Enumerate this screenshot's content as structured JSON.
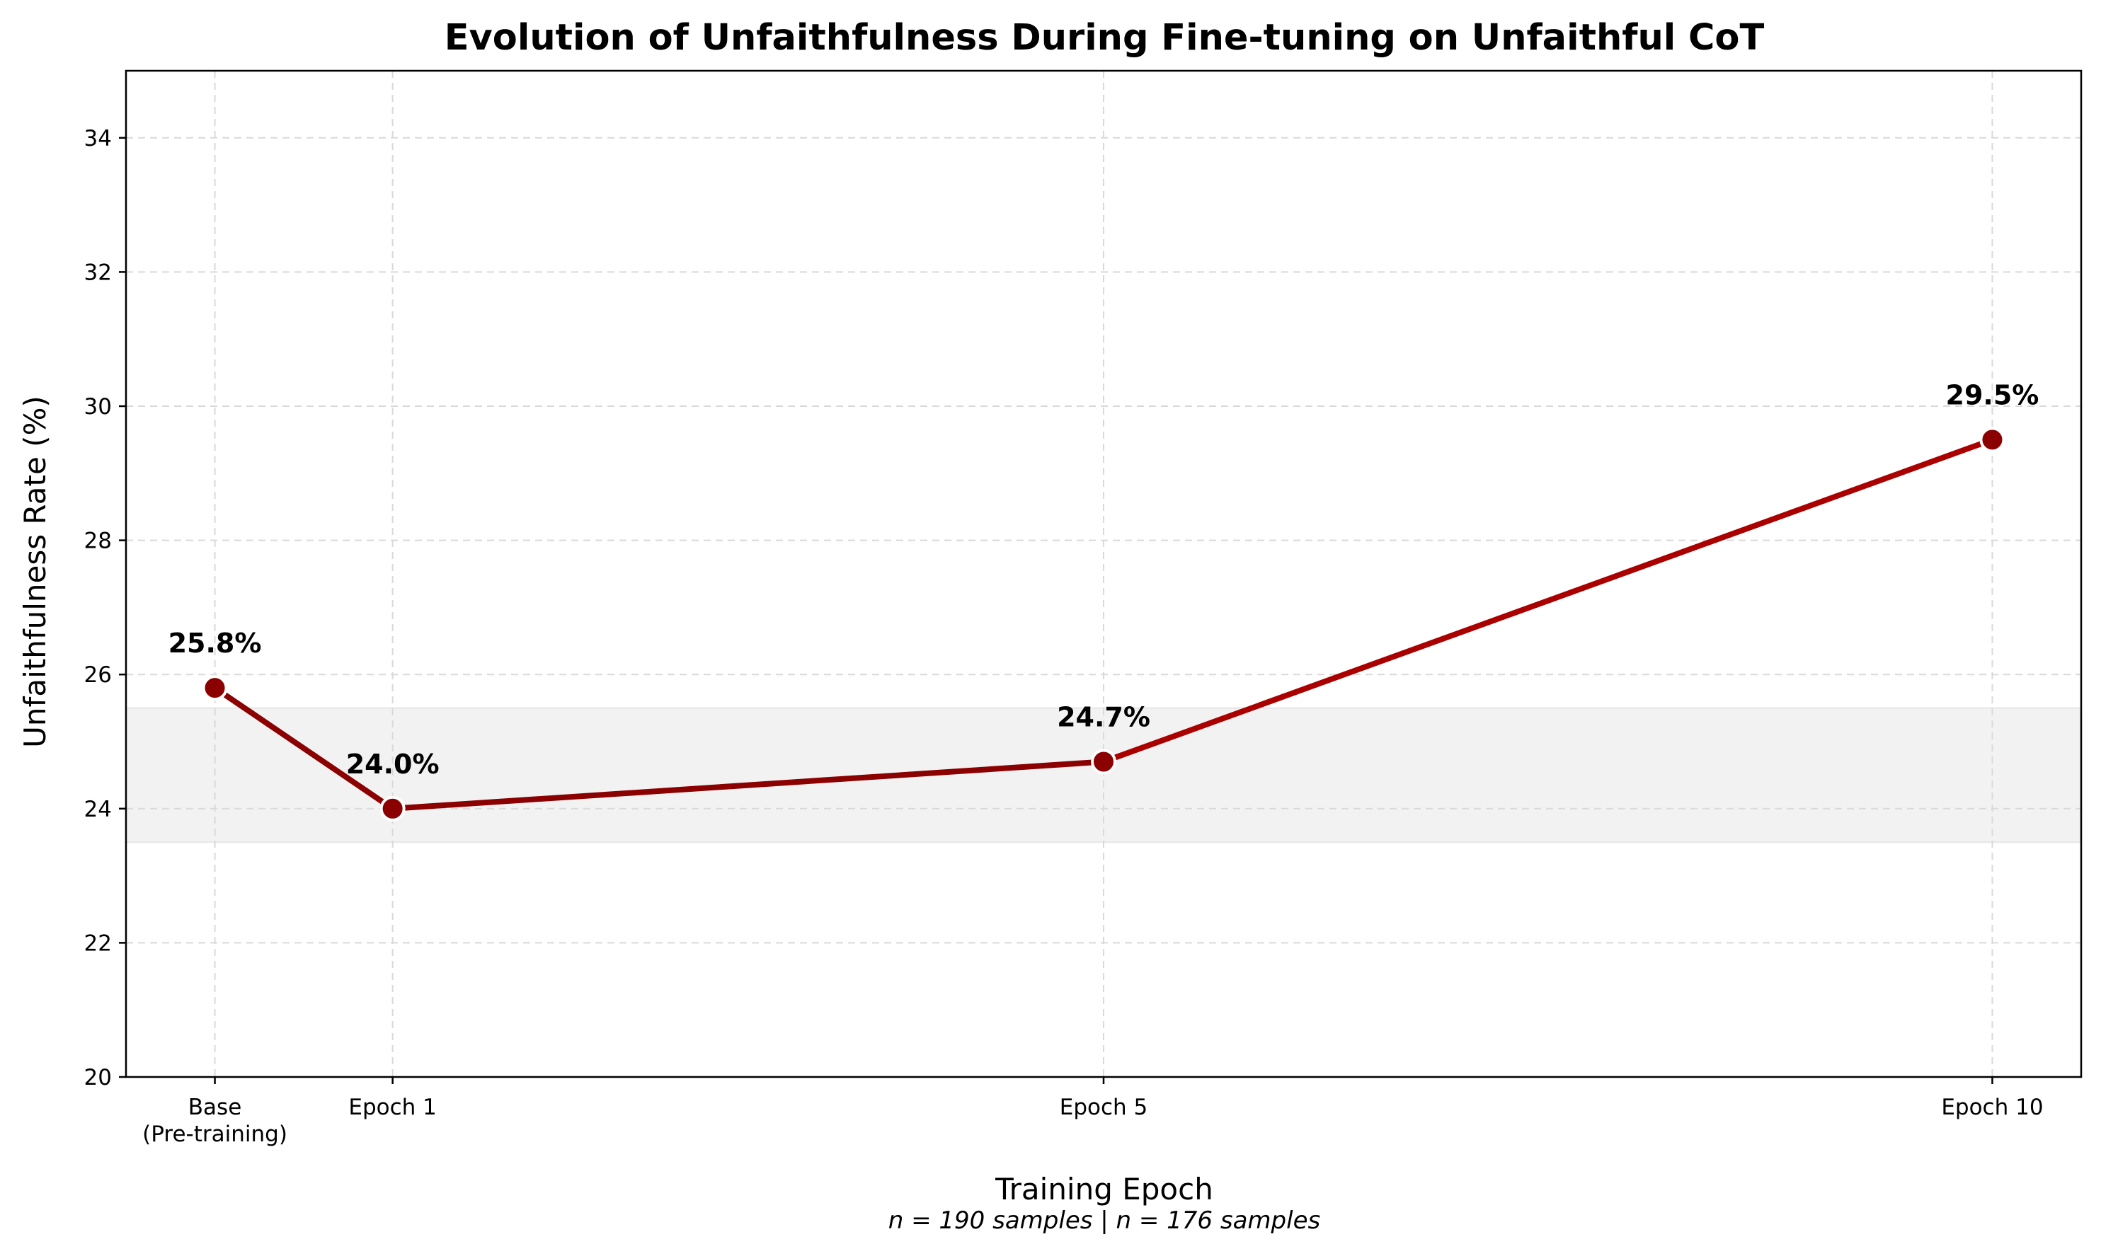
{
  "chart_data": {
    "type": "line",
    "title": "Evolution of Unfaithfulness During Fine-tuning on Unfaithful CoT",
    "xlabel": "Training Epoch",
    "ylabel": "Unfaithfulness Rate (%)",
    "footnote": "n = 190 samples | n = 176 samples",
    "x": [
      0,
      1,
      5,
      10
    ],
    "xlim": [
      -0.5,
      10.5
    ],
    "x_tick_labels": [
      [
        "Base",
        "(Pre-training)"
      ],
      [
        "Epoch 1"
      ],
      [
        "Epoch 5"
      ],
      [
        "Epoch 10"
      ]
    ],
    "ylim": [
      20,
      35
    ],
    "y_ticks": [
      20,
      22,
      24,
      26,
      28,
      30,
      32,
      34
    ],
    "series": [
      {
        "values": [
          25.8,
          24.0,
          24.7,
          29.5
        ]
      }
    ],
    "data_labels": [
      "25.8%",
      "24.0%",
      "24.7%",
      "29.5%"
    ],
    "segment_colors": [
      "#8b0000",
      "#8b0000",
      "#aa0000"
    ],
    "marker_color": "#8b0000",
    "band": {
      "y_range": [
        23.5,
        25.5
      ],
      "color": "#f2f2f2"
    },
    "grid": true
  }
}
